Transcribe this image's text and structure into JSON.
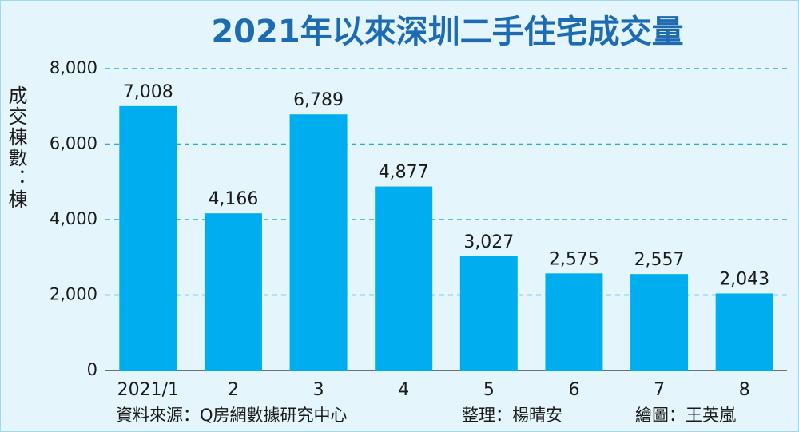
{
  "chart_data": {
    "type": "bar",
    "title": "2021年以來深圳二手住宅成交量",
    "y_label": "成交棟數：棟",
    "categories": [
      "2021/1",
      "2",
      "3",
      "4",
      "5",
      "6",
      "7",
      "8"
    ],
    "values": [
      7008,
      4166,
      6789,
      4877,
      3027,
      2575,
      2557,
      2043
    ],
    "value_labels": [
      "7,008",
      "4,166",
      "6,789",
      "4,877",
      "3,027",
      "2,575",
      "2,557",
      "2,043"
    ],
    "color": "#00aeef",
    "ylim": [
      0,
      8000
    ],
    "yticks": [
      0,
      {
        "value": 2000,
        "label": "2,000"
      },
      {
        "value": 4000,
        "label": "4,000"
      },
      {
        "value": 6000,
        "label": "6,000"
      },
      {
        "value": 8000,
        "label": "8,000"
      }
    ],
    "grid": true,
    "notes": [
      "資料來源：Q房網數據研究中心",
      "整理：楊晴安",
      "繪圖：王英嵐"
    ]
  }
}
